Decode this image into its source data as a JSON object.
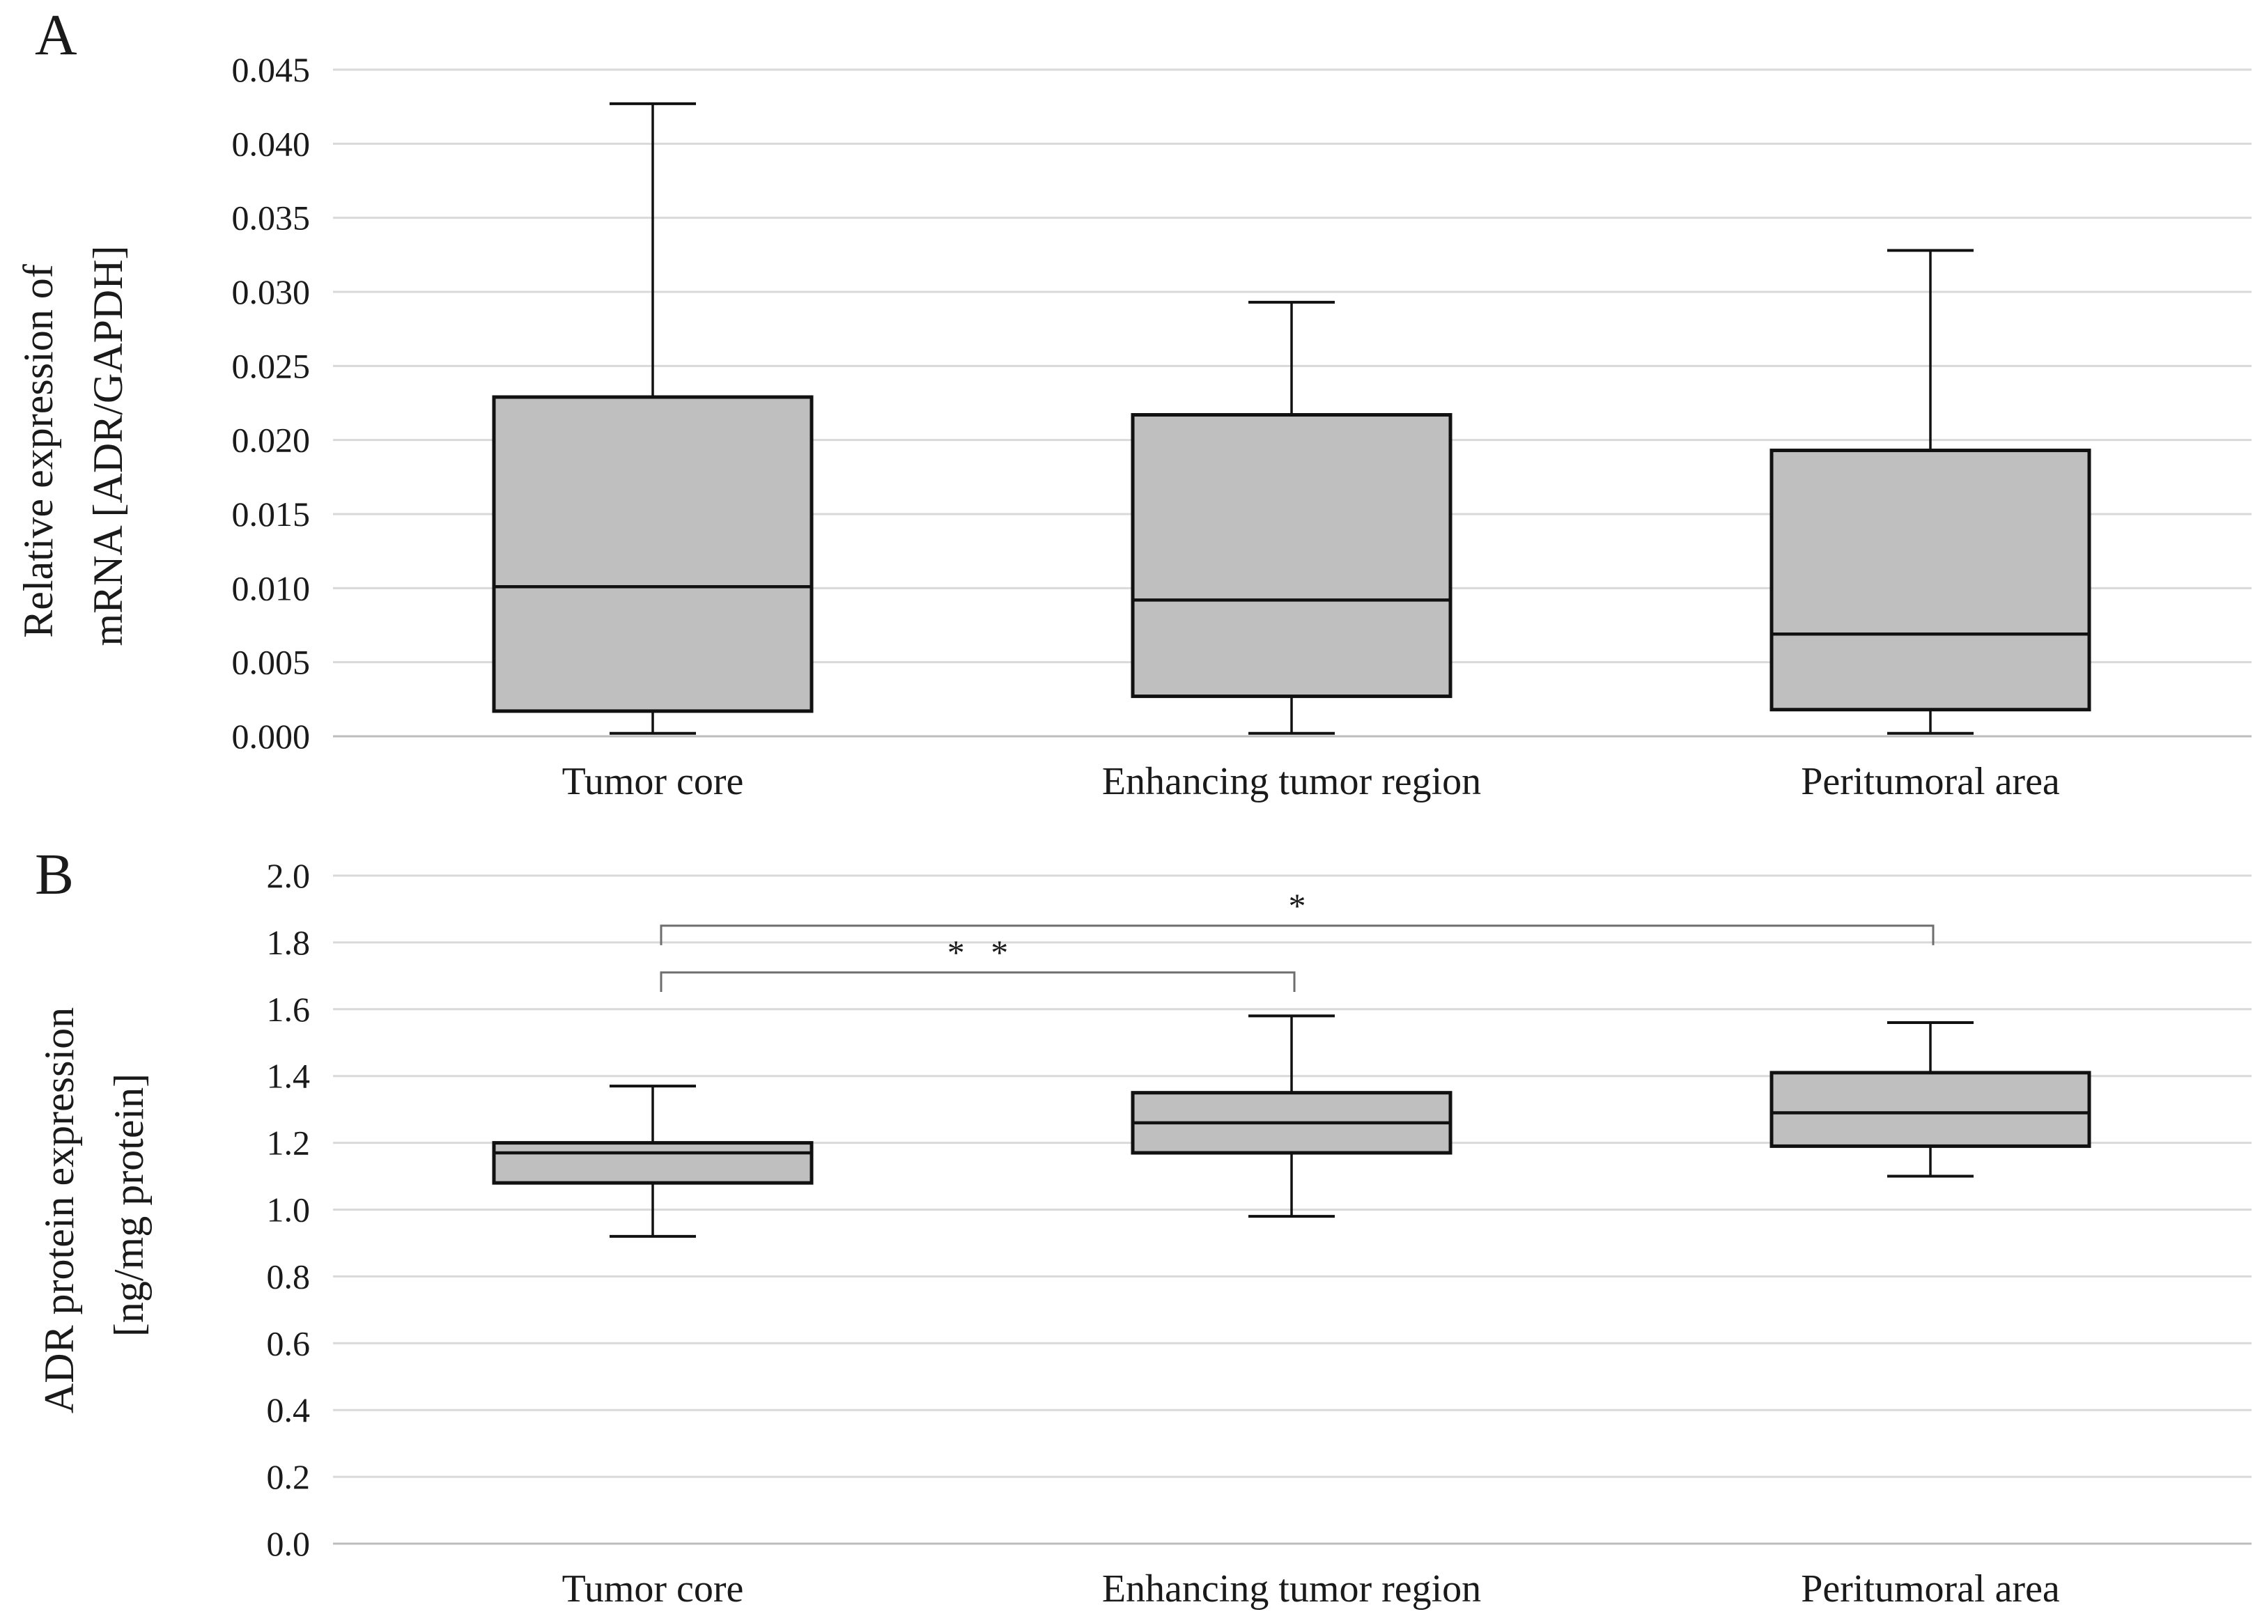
{
  "chart_data": [
    {
      "panel_label": "A",
      "type": "box",
      "ylabel_lines": [
        "Relative expression of",
        "mRNA [ADR/GAPDH]"
      ],
      "categories": [
        "Tumor core",
        "Enhancing tumor region",
        "Peritumoral area"
      ],
      "ylim": [
        0,
        0.045
      ],
      "yticks": [
        "0.000",
        "0.005",
        "0.010",
        "0.015",
        "0.020",
        "0.025",
        "0.030",
        "0.035",
        "0.040",
        "0.045"
      ],
      "grid": true,
      "box_color": "#bfbfbf",
      "boxes": [
        {
          "category": "Tumor core",
          "min": 0.0002,
          "q1": 0.0017,
          "median": 0.0101,
          "q3": 0.0229,
          "max": 0.0427
        },
        {
          "category": "Enhancing tumor region",
          "min": 0.0002,
          "q1": 0.0027,
          "median": 0.0092,
          "q3": 0.0217,
          "max": 0.0293
        },
        {
          "category": "Peritumoral area",
          "min": 0.0002,
          "q1": 0.0018,
          "median": 0.0069,
          "q3": 0.0193,
          "max": 0.0328
        }
      ],
      "significance": []
    },
    {
      "panel_label": "B",
      "type": "box",
      "ylabel_lines": [
        "ADR protein expression",
        "[ng/mg protein]"
      ],
      "categories": [
        "Tumor core",
        "Enhancing tumor region",
        "Peritumoral area"
      ],
      "ylim": [
        0,
        2.0
      ],
      "yticks": [
        "0.0",
        "0.2",
        "0.4",
        "0.6",
        "0.8",
        "1.0",
        "1.2",
        "1.4",
        "1.6",
        "1.8",
        "2.0"
      ],
      "grid": true,
      "box_color": "#bfbfbf",
      "boxes": [
        {
          "category": "Tumor core",
          "min": 0.92,
          "q1": 1.08,
          "median": 1.17,
          "q3": 1.2,
          "max": 1.37
        },
        {
          "category": "Enhancing tumor region",
          "min": 0.98,
          "q1": 1.17,
          "median": 1.26,
          "q3": 1.35,
          "max": 1.58
        },
        {
          "category": "Peritumoral area",
          "min": 1.1,
          "q1": 1.19,
          "median": 1.29,
          "q3": 1.41,
          "max": 1.56
        }
      ],
      "significance": [
        {
          "from": "Tumor core",
          "to": "Enhancing tumor region",
          "y": 1.71,
          "label": "* *"
        },
        {
          "from": "Tumor core",
          "to": "Peritumoral area",
          "y": 1.85,
          "label": "*"
        }
      ]
    }
  ]
}
